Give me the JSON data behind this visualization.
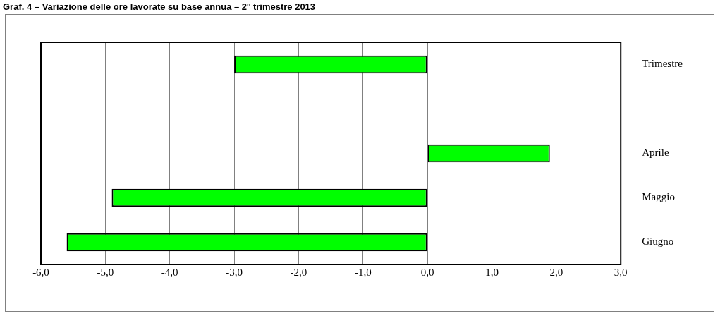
{
  "chart_data": {
    "type": "bar",
    "orientation": "horizontal",
    "title": "Graf. 4 – Variazione delle ore lavorate su base annua – 2° trimestre 2013",
    "categories": [
      "Trimestre",
      null,
      "Aprile",
      "Maggio",
      "Giugno"
    ],
    "values": [
      -3.0,
      null,
      1.9,
      -4.9,
      -5.6
    ],
    "color": "#00ff00",
    "xlim": [
      -6,
      3
    ],
    "xticks": [
      {
        "value": -6,
        "label": "-6,0"
      },
      {
        "value": -5,
        "label": "-5,0"
      },
      {
        "value": -4,
        "label": "-4,0"
      },
      {
        "value": -3,
        "label": "-3,0"
      },
      {
        "value": -2,
        "label": "-2,0"
      },
      {
        "value": -1,
        "label": "-1,0"
      },
      {
        "value": 0,
        "label": "0,0"
      },
      {
        "value": 1,
        "label": "1,0"
      },
      {
        "value": 2,
        "label": "2,0"
      },
      {
        "value": 3,
        "label": "3,0"
      }
    ],
    "grid": "x",
    "legend": false
  }
}
